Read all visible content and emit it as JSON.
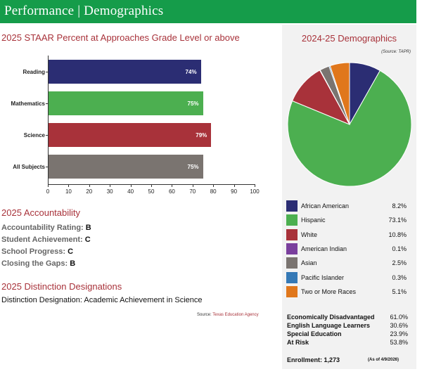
{
  "header": {
    "title": "Performance | Demographics"
  },
  "staar": {
    "heading": "2025 STAAR Percent at Approaches Grade Level or above"
  },
  "chart_data": {
    "type": "bar",
    "orientation": "horizontal",
    "categories": [
      "Reading",
      "Mathematics",
      "Science",
      "All Subjects"
    ],
    "values": [
      74,
      75,
      79,
      75
    ],
    "value_labels": [
      "74%",
      "75%",
      "79%",
      "75%"
    ],
    "colors": [
      "#2b2d73",
      "#4caf50",
      "#a8323a",
      "#7a7470"
    ],
    "xlim": [
      0,
      100
    ],
    "xticks": [
      "0",
      "10",
      "20",
      "30",
      "40",
      "50",
      "60",
      "70",
      "80",
      "90",
      "100"
    ],
    "title": "2025 STAAR Percent at Approaches Grade Level or above",
    "xlabel": "",
    "ylabel": "",
    "grid": false
  },
  "accountability": {
    "heading": "2025 Accountability",
    "rows": [
      {
        "label": "Accountability Rating:",
        "value": "B"
      },
      {
        "label": "Student Achievement:",
        "value": "C"
      },
      {
        "label": "School Progress:",
        "value": "C"
      },
      {
        "label": "Closing the Gaps:",
        "value": "B"
      }
    ]
  },
  "distinctions": {
    "heading": "2025 Distinction Designations",
    "text": "Distinction Designation: Academic Achievement in Science",
    "source_prefix": "Source: ",
    "source_agency": "Texas Education Agency"
  },
  "demographics": {
    "title": "2024-25 Demographics",
    "source_note": "(Source: TAPR)",
    "pie": [
      {
        "name": "African American",
        "pct": 8.2,
        "label": "8.2%",
        "color": "#2b2d73"
      },
      {
        "name": "Hispanic",
        "pct": 73.1,
        "label": "73.1%",
        "color": "#4caf50"
      },
      {
        "name": "White",
        "pct": 10.8,
        "label": "10.8%",
        "color": "#a8323a"
      },
      {
        "name": "American Indian",
        "pct": 0.1,
        "label": "0.1%",
        "color": "#7a3f9d"
      },
      {
        "name": "Asian",
        "pct": 2.5,
        "label": "2.5%",
        "color": "#7a7470"
      },
      {
        "name": "Pacific Islander",
        "pct": 0.3,
        "label": "0.3%",
        "color": "#3579b6"
      },
      {
        "name": "Two or More Races",
        "pct": 5.1,
        "label": "5.1%",
        "color": "#e0771c"
      }
    ],
    "stats": [
      {
        "label": "Economically Disadvantaged",
        "value": "61.0%"
      },
      {
        "label": "English Language Learners",
        "value": "30.6%"
      },
      {
        "label": "Special Education",
        "value": "23.9%"
      },
      {
        "label": "At Risk",
        "value": "53.8%"
      }
    ],
    "enrollment": "Enrollment: 1,273",
    "as_of": "(As of 4/9/2026)"
  }
}
